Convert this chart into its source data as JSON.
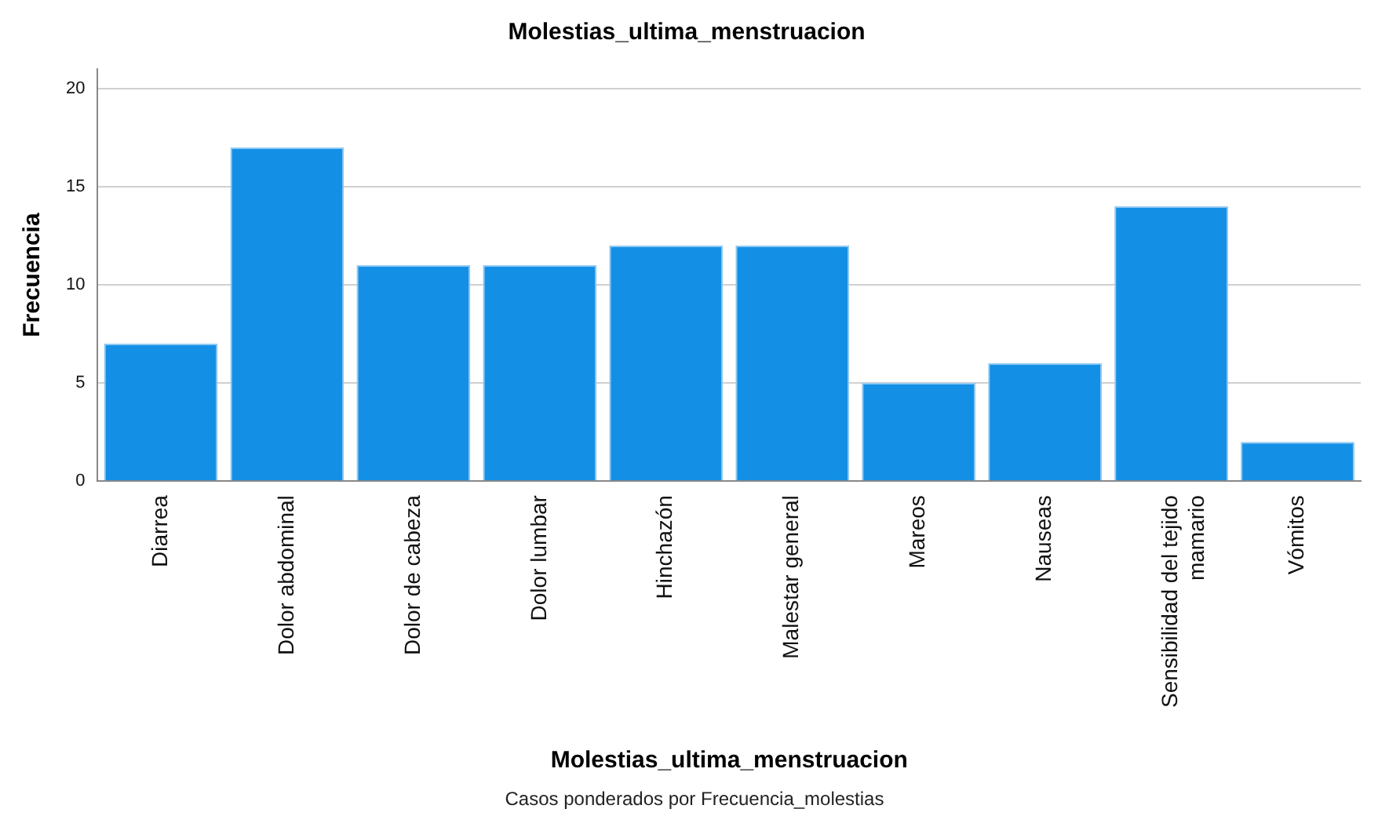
{
  "chart_data": {
    "type": "bar",
    "title": "Molestias_ultima_menstruacion",
    "xlabel": "Molestias_ultima_menstruacion",
    "ylabel": "Frecuencia",
    "categories": [
      "Diarrea",
      "Dolor abdominal",
      "Dolor de cabeza",
      "Dolor lumbar",
      "Hinchazón",
      "Malestar general",
      "Mareos",
      "Nauseas",
      "Sensibilidad del tejido mamario",
      "Vómitos"
    ],
    "values": [
      7,
      17,
      11,
      11,
      12,
      12,
      5,
      6,
      14,
      2
    ],
    "color": "#1390e5",
    "ylim": [
      0,
      21
    ],
    "yticks": [
      0,
      5,
      10,
      15,
      20
    ],
    "grid": "y",
    "legend": false,
    "annotations": [
      "Casos ponderados por Frecuencia_molestias"
    ]
  }
}
